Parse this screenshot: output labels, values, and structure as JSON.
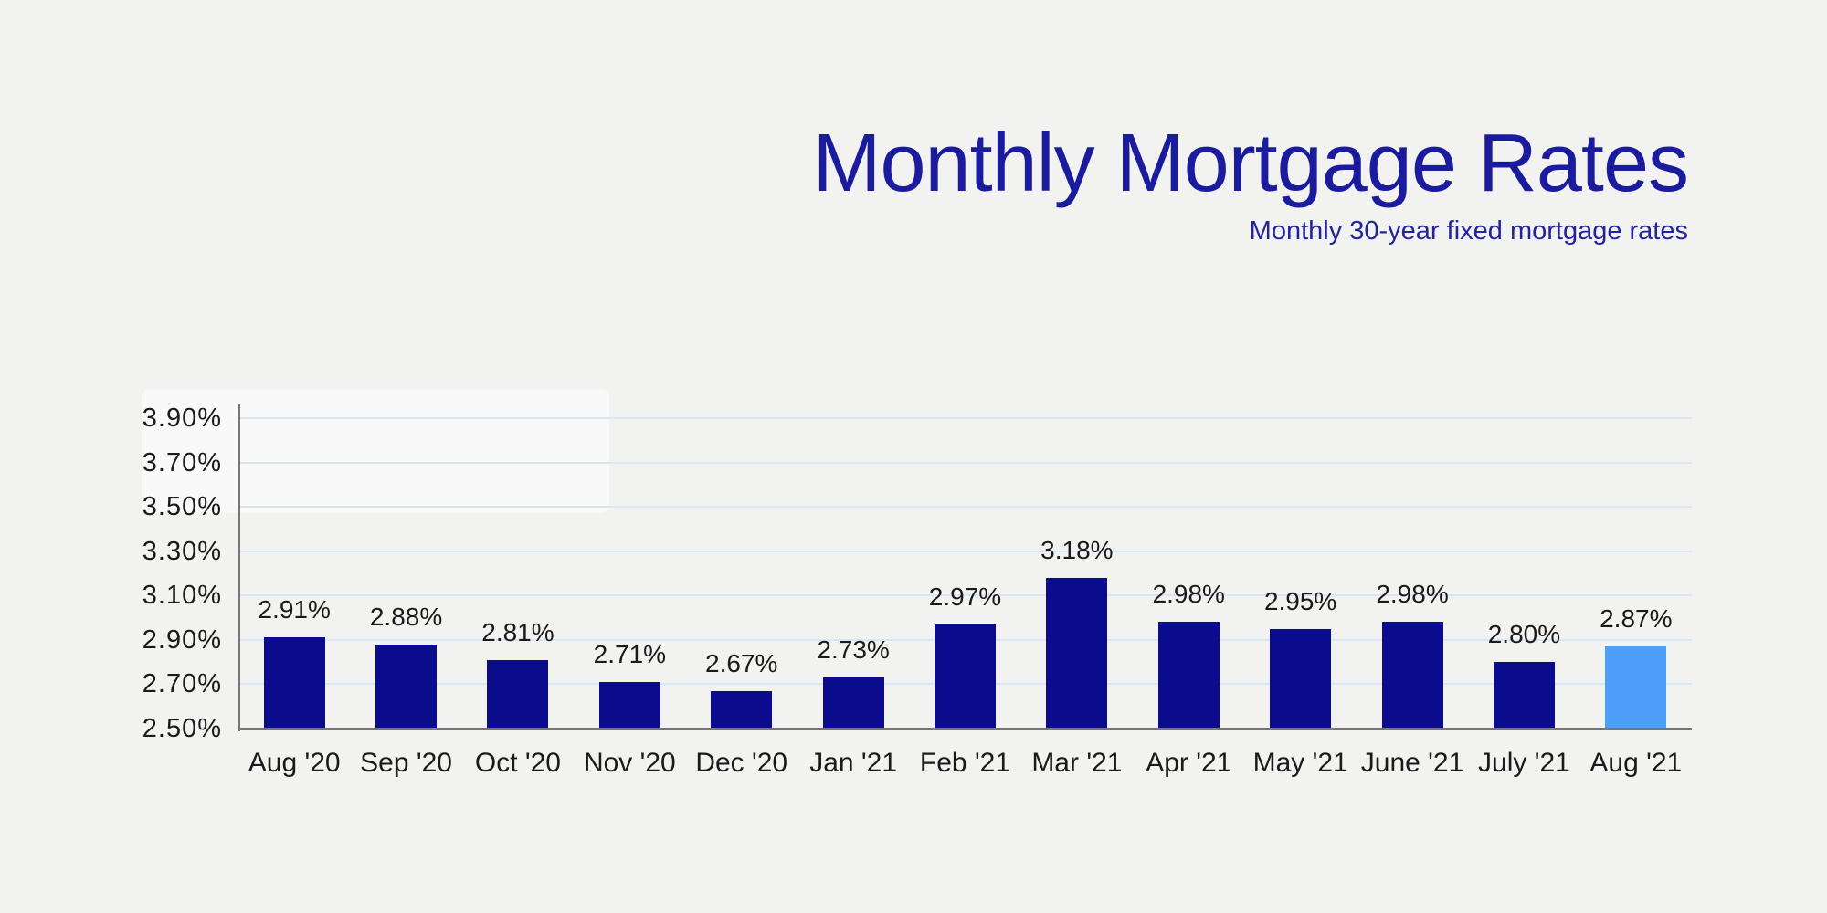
{
  "header": {
    "title": "Monthly Mortgage Rates",
    "subtitle": "Monthly 30-year fixed mortgage rates"
  },
  "colors": {
    "page_bg": "#f2f2f1",
    "title_text": "#1b1b9e",
    "subtitle_text": "#23239b",
    "bar": "#0b0b8d",
    "bar_highlight": "#4d9ff7",
    "gridline": "#d9e6f7",
    "axis": "#777777",
    "label_text": "#1a1a1a"
  },
  "chart_data": {
    "type": "bar",
    "title": "Monthly Mortgage Rates",
    "subtitle": "Monthly 30-year fixed mortgage rates",
    "categories": [
      "Aug '20",
      "Sep '20",
      "Oct '20",
      "Nov '20",
      "Dec '20",
      "Jan '21",
      "Feb '21",
      "Mar '21",
      "Apr '21",
      "May '21",
      "June '21",
      "July '21",
      "Aug '21"
    ],
    "values": [
      2.91,
      2.88,
      2.81,
      2.71,
      2.67,
      2.73,
      2.97,
      3.18,
      2.98,
      2.95,
      2.98,
      2.8,
      2.87
    ],
    "value_labels": [
      "2.91%",
      "2.88%",
      "2.81%",
      "2.71%",
      "2.67%",
      "2.73%",
      "2.97%",
      "3.18%",
      "2.98%",
      "2.95%",
      "2.98%",
      "2.80%",
      "2.87%"
    ],
    "xlabel": "",
    "ylabel": "",
    "ylim": [
      2.5,
      3.9
    ],
    "ytick_step": 0.2,
    "ytick_labels": [
      "2.50%",
      "2.70%",
      "2.90%",
      "3.10%",
      "3.30%",
      "3.50%",
      "3.70%",
      "3.90%"
    ],
    "grid": true,
    "legend": false,
    "highlight_index": 12
  }
}
